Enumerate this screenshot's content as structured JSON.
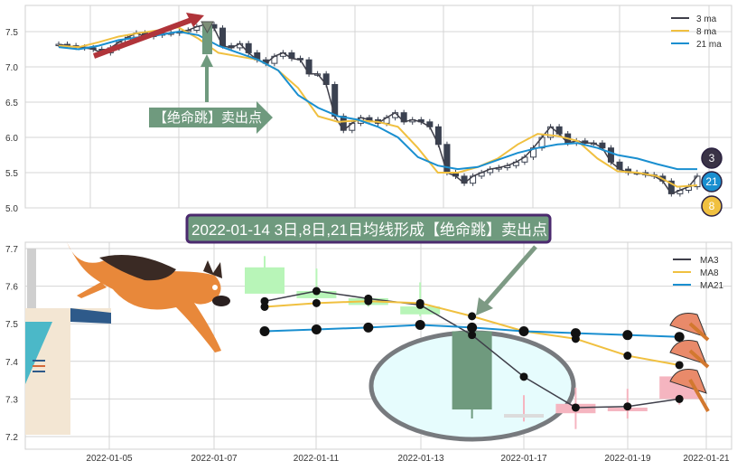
{
  "colors": {
    "ma3": "#3f3f4a",
    "ma8": "#f0c040",
    "ma21": "#1a8fd0",
    "candle_top": "#3a4150",
    "down": "#6f9a7e",
    "down_light": "#b8f5b8",
    "up_light": "#f5b5c0",
    "flat": "#dcdcdc",
    "banner_bg": "#6f9a7e",
    "banner_border": "#4b2a6e",
    "red_arrow": "#b0343a"
  },
  "chart_data": [
    {
      "type": "line",
      "ylim": [
        5.0,
        7.8
      ],
      "yticks": [
        "5.0",
        "5.5",
        "6.0",
        "6.5",
        "7.0",
        "7.5"
      ],
      "grid": true,
      "legend_placement": "top-right",
      "legend": [
        "3 ma",
        "8 ma",
        "21 ma"
      ],
      "close": [
        7.32,
        7.3,
        7.28,
        7.27,
        7.25,
        7.2,
        7.27,
        7.35,
        7.42,
        7.48,
        7.43,
        7.45,
        7.47,
        7.48,
        7.5,
        7.52,
        7.57,
        7.6,
        7.55,
        7.3,
        7.27,
        7.33,
        7.2,
        7.1,
        7.05,
        7.15,
        7.2,
        7.12,
        7.1,
        6.9,
        6.9,
        6.75,
        6.3,
        6.1,
        6.2,
        6.28,
        6.25,
        6.2,
        6.28,
        6.35,
        6.22,
        6.25,
        6.22,
        6.15,
        5.9,
        5.5,
        5.45,
        5.35,
        5.45,
        5.5,
        5.55,
        5.57,
        5.6,
        5.65,
        5.72,
        5.85,
        6.0,
        6.15,
        6.05,
        5.92,
        5.95,
        5.92,
        5.92,
        5.85,
        5.65,
        5.55,
        5.5,
        5.5,
        5.47,
        5.45,
        5.38,
        5.2,
        5.25,
        5.3,
        5.45
      ],
      "ma8": [
        7.3,
        7.28,
        7.35,
        7.43,
        7.48,
        7.52,
        7.56,
        7.4,
        7.2,
        7.15,
        7.1,
        6.95,
        6.7,
        6.3,
        6.22,
        6.24,
        6.22,
        6.15,
        5.85,
        5.5,
        5.5,
        5.58,
        5.7,
        5.9,
        6.05,
        6.02,
        5.95,
        5.7,
        5.52,
        5.5,
        5.45,
        5.3,
        5.32
      ],
      "ma21": [
        7.28,
        7.25,
        7.3,
        7.38,
        7.42,
        7.45,
        7.5,
        7.45,
        7.3,
        7.2,
        7.1,
        6.95,
        6.6,
        6.42,
        6.3,
        6.25,
        6.15,
        6.0,
        5.72,
        5.6,
        5.55,
        5.58,
        5.68,
        5.78,
        5.85,
        5.9,
        5.92,
        5.85,
        5.75,
        5.7,
        5.62,
        5.55,
        5.55
      ],
      "badges": [
        "3",
        "21",
        "8"
      ],
      "annotation": "【绝命跳】卖出点"
    },
    {
      "type": "candlestick",
      "ylim": [
        7.2,
        7.7
      ],
      "yticks": [
        "7.2",
        "7.3",
        "7.4",
        "7.5",
        "7.6",
        "7.7"
      ],
      "xticks": [
        "2022-01-05",
        "2022-01-07",
        "2022-01-11",
        "2022-01-13",
        "2022-01-17",
        "2022-01-19",
        "2022-01-21"
      ],
      "grid": true,
      "legend_placement": "top-right",
      "legend": [
        "MA3",
        "MA8",
        "MA21"
      ],
      "candles": [
        {
          "date": "2022-01-10",
          "open": 7.65,
          "close": 7.58,
          "high": 7.68,
          "low": 7.58,
          "ma3": 7.56,
          "ma8": 7.545,
          "ma21": 7.48
        },
        {
          "date": "2022-01-11",
          "open": 7.587,
          "close": 7.568,
          "high": 7.647,
          "low": 7.565,
          "ma3": 7.587,
          "ma8": 7.555,
          "ma21": 7.485
        },
        {
          "date": "2022-01-12",
          "open": 7.568,
          "close": 7.55,
          "high": 7.575,
          "low": 7.545,
          "ma3": 7.567,
          "ma8": 7.56,
          "ma21": 7.49
        },
        {
          "date": "2022-01-13",
          "open": 7.546,
          "close": 7.525,
          "high": 7.61,
          "low": 7.52,
          "ma3": 7.55,
          "ma8": 7.555,
          "ma21": 7.497
        },
        {
          "date": "2022-01-14",
          "open": 7.48,
          "close": 7.272,
          "high": 7.49,
          "low": 7.248,
          "ma3": 7.47,
          "ma8": 7.52,
          "ma21": 7.49
        },
        {
          "date": "2022-01-17",
          "open": 7.26,
          "close": 7.26,
          "high": 7.31,
          "low": 7.24,
          "ma3": 7.359,
          "ma8": 7.48,
          "ma21": 7.48
        },
        {
          "date": "2022-01-18",
          "open": 7.262,
          "close": 7.287,
          "high": 7.33,
          "low": 7.22,
          "ma3": 7.277,
          "ma8": 7.46,
          "ma21": 7.475
        },
        {
          "date": "2022-01-19",
          "open": 7.268,
          "close": 7.277,
          "high": 7.327,
          "low": 7.248,
          "ma3": 7.28,
          "ma8": 7.415,
          "ma21": 7.47
        },
        {
          "date": "2022-01-20",
          "open": 7.3,
          "close": 7.36,
          "high": 7.36,
          "low": 7.285,
          "ma3": 7.3,
          "ma8": 7.39,
          "ma21": 7.465
        }
      ]
    }
  ],
  "banner": "2022-01-14 3日,8日,21日均线形成【绝命跳】卖出点"
}
